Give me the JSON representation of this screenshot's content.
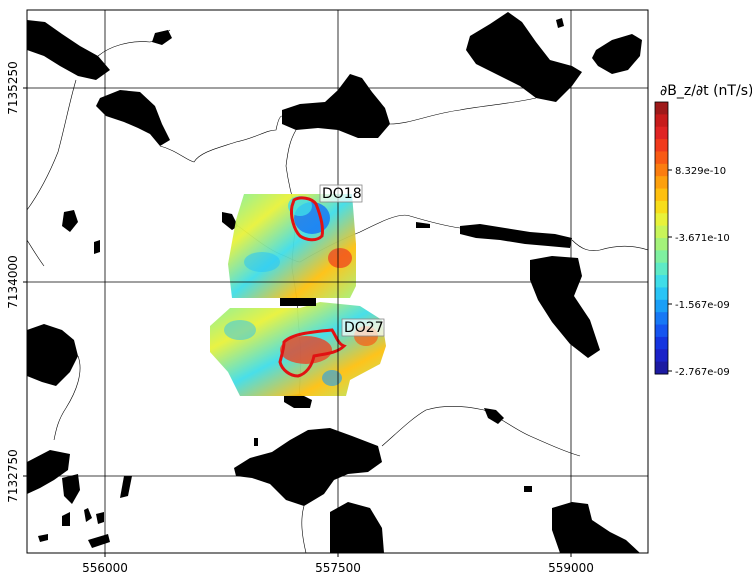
{
  "map": {
    "x_ticks": [
      "556000",
      "557500",
      "559000"
    ],
    "y_ticks": [
      "7135250",
      "7134000",
      "7132750"
    ]
  },
  "targets": [
    {
      "label": "DO18"
    },
    {
      "label": "DO27"
    }
  ],
  "colorbar": {
    "title": "∂B_z/∂t (nT/s)",
    "ticks": [
      "8.329e-10",
      "-3.671e-10",
      "-1.567e-09",
      "-2.767e-09"
    ],
    "colors": [
      "#9e1a1a",
      "#c71c1c",
      "#e02424",
      "#f03a1c",
      "#f85a14",
      "#fb7d0f",
      "#fda00d",
      "#fec00f",
      "#f7dd1a",
      "#e8f23a",
      "#c8f55a",
      "#a4f27a",
      "#7ff0a0",
      "#5eeac6",
      "#3fdde8",
      "#29c4f5",
      "#1a9ff7",
      "#1778f5",
      "#1655f0",
      "#1535e0",
      "#1b22c8",
      "#1c1aa2"
    ]
  },
  "colors": {
    "water": "#000000",
    "outline": "#e11212",
    "grid": "#000000"
  }
}
